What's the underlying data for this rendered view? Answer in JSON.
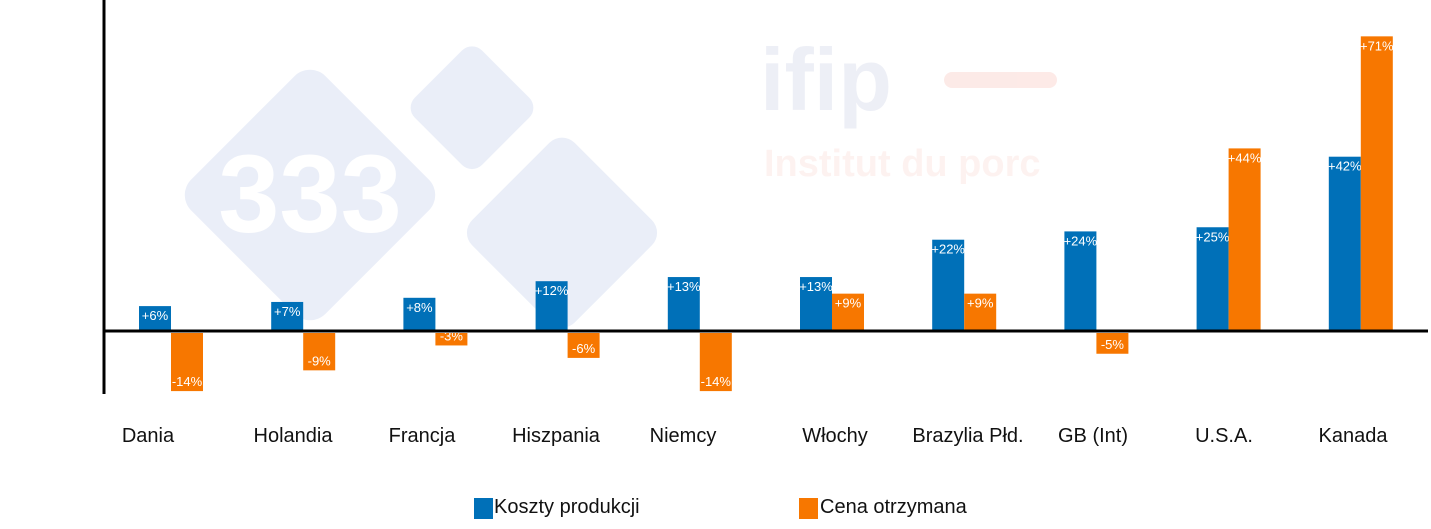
{
  "chart_data": {
    "type": "bar",
    "categories": [
      "Dania",
      "Holandia",
      "Francja",
      "Hiszpania",
      "Niemcy",
      "Włochy",
      "Brazylia Płd.",
      "GB (Int)",
      "U.S.A.",
      "Kanada"
    ],
    "series": [
      {
        "name": "Koszty produkcji",
        "color": "#0070b8",
        "values": [
          6,
          7,
          8,
          12,
          13,
          13,
          22,
          24,
          25,
          42
        ],
        "labels": [
          "+6%",
          "+7%",
          "+8%",
          "+12%",
          "+13%",
          "+13%",
          "+22%",
          "+24%",
          "+25%",
          "+42%"
        ]
      },
      {
        "name": "Cena otrzymana",
        "color": "#f77700",
        "values": [
          -14,
          -9,
          -3,
          -6,
          -14,
          9,
          9,
          -5,
          44,
          71
        ],
        "labels": [
          "-14%",
          "-9%",
          "-3%",
          "-6%",
          "-14%",
          "+9%",
          "+9%",
          "-5%",
          "+44%",
          "+71%"
        ]
      }
    ],
    "ylim": [
      -15,
      80
    ],
    "grid": false,
    "legend_position": "bottom",
    "watermarks": [
      "333",
      "ifip",
      "Institut du porc"
    ]
  }
}
